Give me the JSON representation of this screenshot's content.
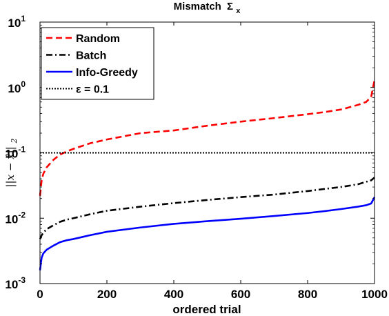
{
  "chart_data": {
    "type": "line",
    "title": "Mismatch",
    "title_symbol": "Σ",
    "title_subscript": "x",
    "xlabel": "ordered trial",
    "ylabel_main": "||x − x̂||",
    "ylabel_subscript": "2",
    "xlim": [
      0,
      1000
    ],
    "ylim": [
      0.001,
      10
    ],
    "yscale": "log",
    "x_ticks": [
      0,
      200,
      400,
      600,
      800,
      1000
    ],
    "y_ticks": [
      {
        "value": 0.001,
        "base": "10",
        "exp": "-3"
      },
      {
        "value": 0.01,
        "base": "10",
        "exp": "-2"
      },
      {
        "value": 0.1,
        "base": "10",
        "exp": "-1"
      },
      {
        "value": 1,
        "base": "10",
        "exp": "0"
      },
      {
        "value": 10,
        "base": "10",
        "exp": "1"
      }
    ],
    "grid": false,
    "legend_position": "top-left",
    "x": [
      0,
      5,
      10,
      20,
      40,
      60,
      80,
      100,
      150,
      200,
      300,
      400,
      500,
      600,
      700,
      800,
      850,
      900,
      950,
      975,
      990,
      1000
    ],
    "series": [
      {
        "name": "Random",
        "style": "dashed",
        "color": "#ff0000",
        "values": [
          0.022,
          0.038,
          0.048,
          0.06,
          0.078,
          0.094,
          0.105,
          0.115,
          0.14,
          0.16,
          0.2,
          0.22,
          0.26,
          0.3,
          0.34,
          0.39,
          0.42,
          0.46,
          0.54,
          0.6,
          0.72,
          1.3
        ]
      },
      {
        "name": "Batch",
        "style": "dashdot",
        "color": "#000000",
        "values": [
          0.0048,
          0.0055,
          0.006,
          0.0068,
          0.0078,
          0.0088,
          0.0095,
          0.01,
          0.0115,
          0.013,
          0.015,
          0.017,
          0.019,
          0.021,
          0.023,
          0.026,
          0.028,
          0.03,
          0.033,
          0.036,
          0.038,
          0.042
        ]
      },
      {
        "name": "Info-Greedy",
        "style": "solid",
        "color": "#0000ff",
        "values": [
          0.0016,
          0.0025,
          0.0029,
          0.0033,
          0.0038,
          0.0043,
          0.0046,
          0.0048,
          0.0055,
          0.0062,
          0.0072,
          0.0082,
          0.009,
          0.0098,
          0.0108,
          0.012,
          0.0128,
          0.0138,
          0.015,
          0.0158,
          0.0168,
          0.021
        ]
      },
      {
        "name": "ε = 0.1",
        "style": "dotted",
        "color": "#000000",
        "values": [
          0.1,
          0.1,
          0.1,
          0.1,
          0.1,
          0.1,
          0.1,
          0.1,
          0.1,
          0.1,
          0.1,
          0.1,
          0.1,
          0.1,
          0.1,
          0.1,
          0.1,
          0.1,
          0.1,
          0.1,
          0.1,
          0.1
        ]
      }
    ]
  }
}
